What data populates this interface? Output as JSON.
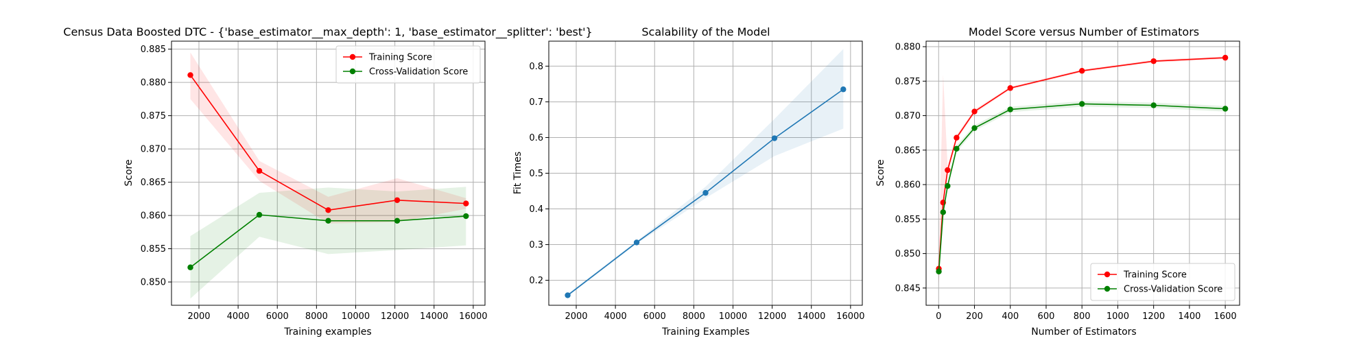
{
  "chart_data": [
    {
      "type": "line",
      "title": "Census Data Boosted DTC - {'base_estimator__max_depth': 1, 'base_estimator__splitter': 'best'}",
      "xlabel": "Training examples",
      "ylabel": "Score",
      "xlim": [
        600,
        16600
      ],
      "ylim": [
        0.8465,
        0.8862
      ],
      "xticks": [
        2000,
        4000,
        6000,
        8000,
        10000,
        12000,
        14000,
        16000
      ],
      "yticks": [
        0.85,
        0.855,
        0.86,
        0.865,
        0.87,
        0.875,
        0.88,
        0.885
      ],
      "ytick_decimals": 3,
      "grid": true,
      "legend_position": "top-right",
      "x": [
        1563,
        5083,
        8600,
        12117,
        15630
      ],
      "series": [
        {
          "name": "Training Score",
          "color": "#ff0000",
          "values": [
            0.8811,
            0.8667,
            0.8608,
            0.8623,
            0.8618
          ],
          "band_low": [
            0.8775,
            0.8652,
            0.8588,
            0.859,
            0.861
          ],
          "band_high": [
            0.8845,
            0.8682,
            0.8628,
            0.8656,
            0.8626
          ],
          "band_color": "#ff0000"
        },
        {
          "name": "Cross-Validation Score",
          "color": "#008000",
          "values": [
            0.8522,
            0.8601,
            0.8592,
            0.8592,
            0.8599
          ],
          "band_low": [
            0.8475,
            0.8568,
            0.8542,
            0.8548,
            0.8555
          ],
          "band_high": [
            0.8569,
            0.8634,
            0.8642,
            0.8636,
            0.8643
          ],
          "band_color": "#008000"
        }
      ]
    },
    {
      "type": "line",
      "title": "Scalability of the Model",
      "xlabel": "Training Examples",
      "ylabel": "Fit Times",
      "xlim": [
        600,
        16600
      ],
      "ylim": [
        0.13,
        0.87
      ],
      "xticks": [
        2000,
        4000,
        6000,
        8000,
        10000,
        12000,
        14000,
        16000
      ],
      "yticks": [
        0.2,
        0.3,
        0.4,
        0.5,
        0.6,
        0.7,
        0.8
      ],
      "ytick_decimals": 1,
      "grid": true,
      "legend_position": "none",
      "x": [
        1563,
        5083,
        8600,
        12117,
        15630
      ],
      "series": [
        {
          "name": "",
          "color": "#1f77b4",
          "values": [
            0.158,
            0.306,
            0.445,
            0.598,
            0.735
          ],
          "band_low": [
            0.155,
            0.302,
            0.43,
            0.548,
            0.625
          ],
          "band_high": [
            0.162,
            0.31,
            0.462,
            0.652,
            0.848
          ],
          "band_color": "#1f77b4"
        }
      ]
    },
    {
      "type": "line",
      "title": "Model Score versus Number of Estimators",
      "xlabel": "Number of Estimators",
      "ylabel": "Score",
      "xlim": [
        -70,
        1680
      ],
      "ylim": [
        0.8425,
        0.8808
      ],
      "xticks": [
        0,
        200,
        400,
        600,
        800,
        1000,
        1200,
        1400,
        1600
      ],
      "yticks": [
        0.845,
        0.85,
        0.855,
        0.86,
        0.865,
        0.87,
        0.875,
        0.88
      ],
      "ytick_decimals": 3,
      "grid": true,
      "legend_position": "bottom-right",
      "x": [
        1,
        25,
        50,
        100,
        200,
        400,
        800,
        1200,
        1600
      ],
      "series": [
        {
          "name": "Training Score",
          "color": "#ff0000",
          "values": [
            0.8478,
            0.8574,
            0.8621,
            0.8668,
            0.8706,
            0.874,
            0.8765,
            0.8779,
            0.8784
          ],
          "band_low": [
            0.8455,
            0.856,
            0.8615,
            0.8664,
            0.8703,
            0.8738,
            0.8763,
            0.8777,
            0.8782
          ],
          "band_high": [
            0.8501,
            0.876,
            0.8627,
            0.8672,
            0.8709,
            0.8742,
            0.8767,
            0.8781,
            0.8786
          ],
          "band_color": "#ff0000"
        },
        {
          "name": "Cross-Validation Score",
          "color": "#008000",
          "values": [
            0.8474,
            0.856,
            0.8598,
            0.8652,
            0.8682,
            0.8709,
            0.8717,
            0.8715,
            0.871
          ],
          "band_low": [
            0.8462,
            0.8552,
            0.8592,
            0.8647,
            0.8678,
            0.8705,
            0.8713,
            0.8711,
            0.8706
          ],
          "band_high": [
            0.8486,
            0.8568,
            0.8604,
            0.8657,
            0.8686,
            0.8713,
            0.8721,
            0.8719,
            0.8714
          ],
          "band_color": "#008000"
        }
      ]
    }
  ]
}
